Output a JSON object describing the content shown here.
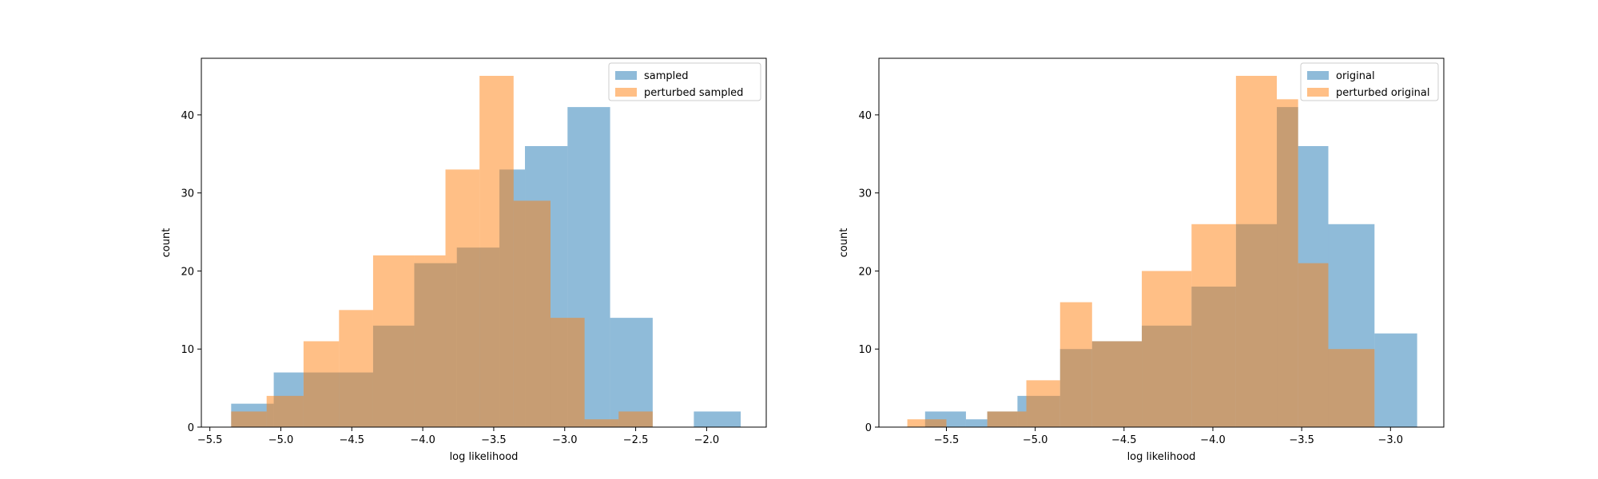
{
  "chart_data": [
    {
      "type": "histogram",
      "xlabel": "log likelihood",
      "ylabel": "count",
      "xlim": [
        -5.56,
        -1.58
      ],
      "ylim": [
        0,
        47.25
      ],
      "xticks": [
        -5.5,
        -5.0,
        -4.5,
        -4.0,
        -3.5,
        -3.0,
        -2.5,
        -2.0
      ],
      "xtick_labels": [
        "−5.5",
        "−5.0",
        "−4.5",
        "−4.0",
        "−3.5",
        "−3.0",
        "−2.5",
        "−2.0"
      ],
      "yticks": [
        0,
        10,
        20,
        30,
        40
      ],
      "ytick_labels": [
        "0",
        "10",
        "20",
        "30",
        "40"
      ],
      "legend_position": "top-right",
      "series": [
        {
          "name": "sampled",
          "color": "#1f77b4",
          "opacity": 0.5,
          "bins": [
            {
              "x0": -5.35,
              "x1": -5.05,
              "count": 3
            },
            {
              "x0": -5.05,
              "x1": -4.84,
              "count": 7
            },
            {
              "x0": -4.84,
              "x1": -4.35,
              "count": 7
            },
            {
              "x0": -4.35,
              "x1": -4.06,
              "count": 13
            },
            {
              "x0": -4.06,
              "x1": -3.76,
              "count": 21
            },
            {
              "x0": -3.76,
              "x1": -3.46,
              "count": 23
            },
            {
              "x0": -3.46,
              "x1": -3.28,
              "count": 33
            },
            {
              "x0": -3.28,
              "x1": -2.98,
              "count": 36
            },
            {
              "x0": -2.98,
              "x1": -2.68,
              "count": 41
            },
            {
              "x0": -2.68,
              "x1": -2.38,
              "count": 14
            },
            {
              "x0": -2.38,
              "x1": -2.09,
              "count": 0
            },
            {
              "x0": -2.09,
              "x1": -1.76,
              "count": 2
            }
          ]
        },
        {
          "name": "perturbed sampled",
          "color": "#ff7f0e",
          "opacity": 0.5,
          "bins": [
            {
              "x0": -5.35,
              "x1": -5.1,
              "count": 2
            },
            {
              "x0": -5.1,
              "x1": -4.84,
              "count": 4
            },
            {
              "x0": -4.84,
              "x1": -4.59,
              "count": 11
            },
            {
              "x0": -4.59,
              "x1": -4.35,
              "count": 15
            },
            {
              "x0": -4.35,
              "x1": -4.06,
              "count": 22
            },
            {
              "x0": -4.06,
              "x1": -3.84,
              "count": 22
            },
            {
              "x0": -3.84,
              "x1": -3.6,
              "count": 33
            },
            {
              "x0": -3.6,
              "x1": -3.36,
              "count": 45
            },
            {
              "x0": -3.36,
              "x1": -3.1,
              "count": 29
            },
            {
              "x0": -3.1,
              "x1": -2.86,
              "count": 14
            },
            {
              "x0": -2.86,
              "x1": -2.62,
              "count": 1
            },
            {
              "x0": -2.62,
              "x1": -2.38,
              "count": 2
            }
          ]
        }
      ]
    },
    {
      "type": "histogram",
      "xlabel": "log likelihood",
      "ylabel": "count",
      "xlim": [
        -5.88,
        -2.7
      ],
      "ylim": [
        0,
        47.25
      ],
      "xticks": [
        -5.5,
        -5.0,
        -4.5,
        -4.0,
        -3.5,
        -3.0
      ],
      "xtick_labels": [
        "−5.5",
        "−5.0",
        "−4.5",
        "−4.0",
        "−3.5",
        "−3.0"
      ],
      "yticks": [
        0,
        10,
        20,
        30,
        40
      ],
      "ytick_labels": [
        "0",
        "10",
        "20",
        "30",
        "40"
      ],
      "legend_position": "top-right",
      "series": [
        {
          "name": "original",
          "color": "#1f77b4",
          "opacity": 0.5,
          "bins": [
            {
              "x0": -5.62,
              "x1": -5.39,
              "count": 2
            },
            {
              "x0": -5.39,
              "x1": -5.27,
              "count": 1
            },
            {
              "x0": -5.27,
              "x1": -5.1,
              "count": 2
            },
            {
              "x0": -5.1,
              "x1": -4.86,
              "count": 4
            },
            {
              "x0": -4.86,
              "x1": -4.68,
              "count": 10
            },
            {
              "x0": -4.68,
              "x1": -4.4,
              "count": 11
            },
            {
              "x0": -4.4,
              "x1": -4.12,
              "count": 13
            },
            {
              "x0": -4.12,
              "x1": -3.87,
              "count": 18
            },
            {
              "x0": -3.87,
              "x1": -3.64,
              "count": 26
            },
            {
              "x0": -3.64,
              "x1": -3.52,
              "count": 41
            },
            {
              "x0": -3.52,
              "x1": -3.35,
              "count": 36
            },
            {
              "x0": -3.35,
              "x1": -3.09,
              "count": 26
            },
            {
              "x0": -3.09,
              "x1": -2.85,
              "count": 12
            }
          ]
        },
        {
          "name": "perturbed original",
          "color": "#ff7f0e",
          "opacity": 0.5,
          "bins": [
            {
              "x0": -5.72,
              "x1": -5.5,
              "count": 1
            },
            {
              "x0": -5.5,
              "x1": -5.27,
              "count": 0
            },
            {
              "x0": -5.27,
              "x1": -5.05,
              "count": 2
            },
            {
              "x0": -5.05,
              "x1": -4.86,
              "count": 6
            },
            {
              "x0": -4.86,
              "x1": -4.68,
              "count": 16
            },
            {
              "x0": -4.68,
              "x1": -4.4,
              "count": 11
            },
            {
              "x0": -4.4,
              "x1": -4.12,
              "count": 20
            },
            {
              "x0": -4.12,
              "x1": -3.87,
              "count": 26
            },
            {
              "x0": -3.87,
              "x1": -3.64,
              "count": 45
            },
            {
              "x0": -3.64,
              "x1": -3.52,
              "count": 42
            },
            {
              "x0": -3.52,
              "x1": -3.35,
              "count": 21
            },
            {
              "x0": -3.35,
              "x1": -3.09,
              "count": 10
            }
          ]
        }
      ]
    }
  ]
}
